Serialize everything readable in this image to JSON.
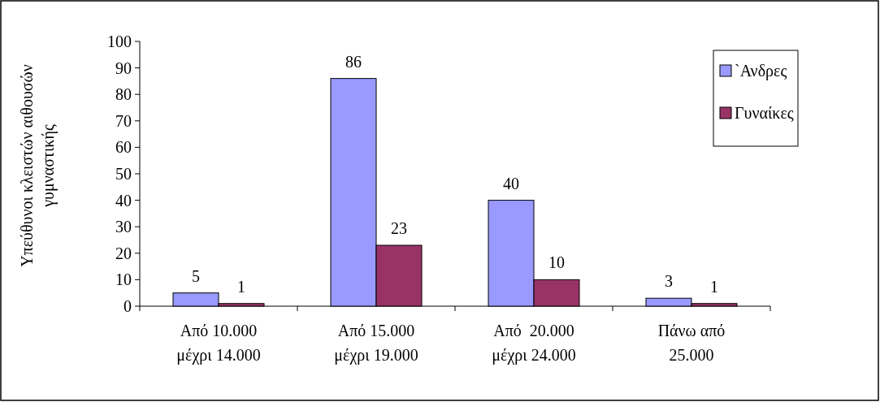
{
  "chart_data": {
    "type": "bar",
    "ylabel": "Υπεύθυνοι κλειστών αιθουσών\nγυμναστικής",
    "categories": [
      "Από 10.000\nμέχρι 14.000",
      "Από 15.000\nμέχρι 19.000",
      "Από  20.000\nμέχρι 24.000",
      "Πάνω από\n25.000"
    ],
    "series": [
      {
        "name": "`Ανδρες",
        "color": "#9999ff",
        "values": [
          5,
          86,
          40,
          3
        ]
      },
      {
        "name": "Γυναίκες",
        "color": "#993366",
        "values": [
          1,
          23,
          10,
          1
        ]
      }
    ],
    "ylim": [
      0,
      100
    ],
    "yticks": [
      0,
      10,
      20,
      30,
      40,
      50,
      60,
      70,
      80,
      90,
      100
    ],
    "grid": false,
    "legend": "top right",
    "data_labels": true
  }
}
